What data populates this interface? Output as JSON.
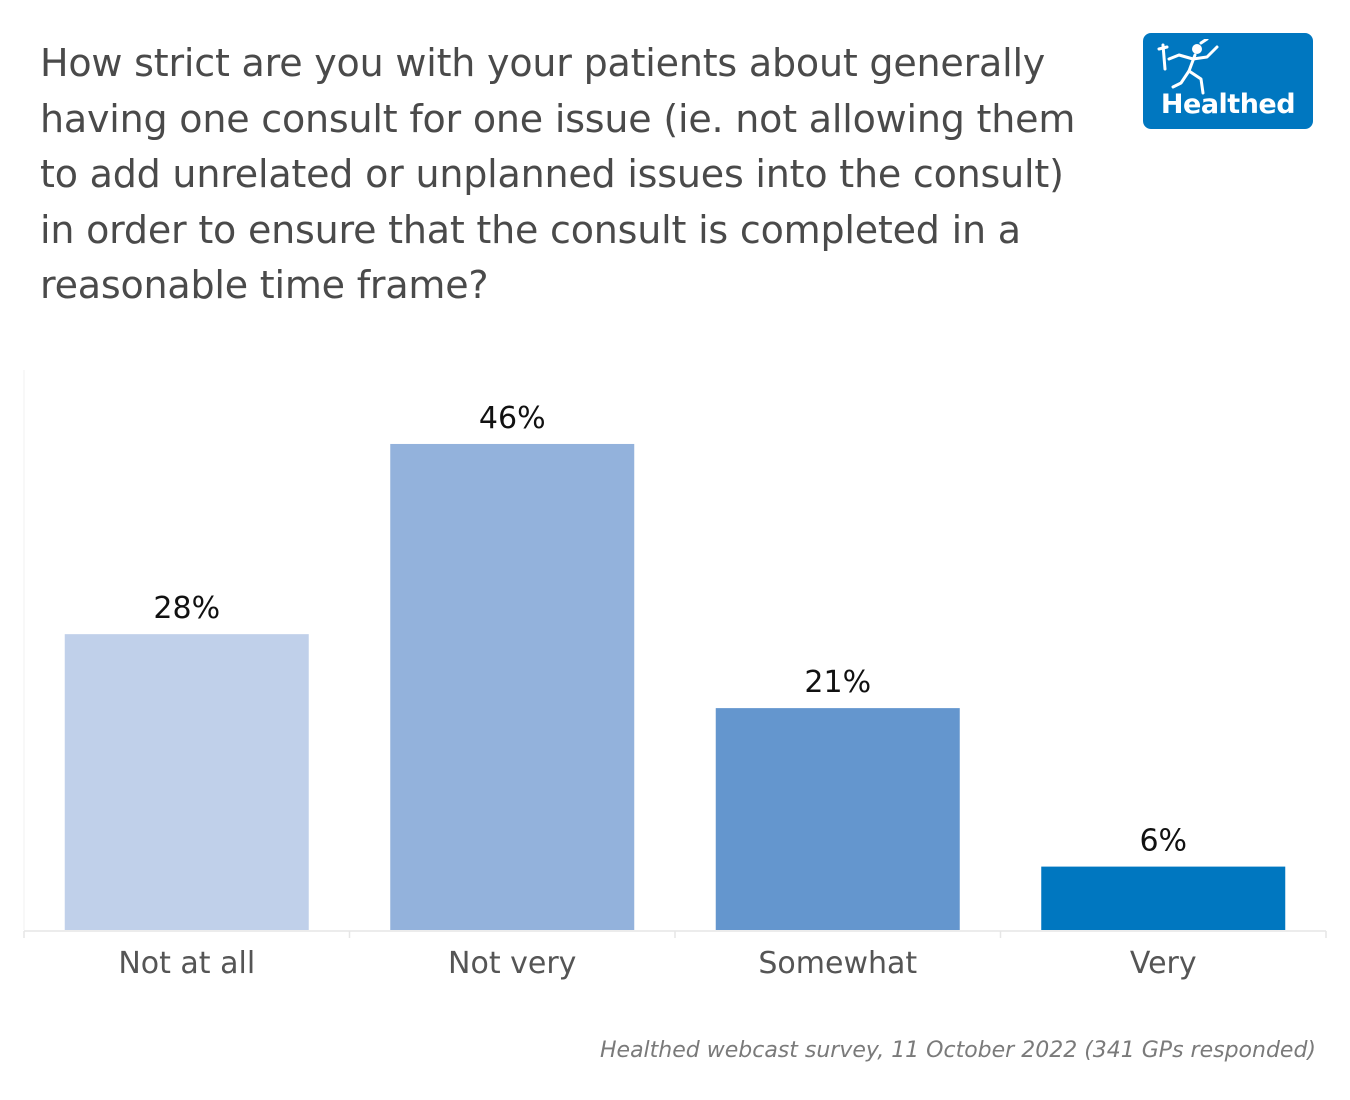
{
  "title": "How strict are you with your patients about generally having one consult for one issue (ie. not allowing them to add unrelated or unplanned issues into the consult) in order to ensure that the consult is completed in a reasonable time frame?",
  "logo": {
    "text": "Healthed",
    "background_color": "#0077c0"
  },
  "source": "Healthed webcast survey, 11 October 2022 (341 GPs responded)",
  "chart_data": {
    "type": "bar",
    "title": "How strict are you with your patients about generally having one consult for one issue (ie. not allowing them to add unrelated or unplanned issues into the consult) in order to ensure that the consult is completed in a reasonable time frame?",
    "categories": [
      "Not at all",
      "Not very",
      "Somewhat",
      "Very"
    ],
    "values": [
      28,
      46,
      21,
      6
    ],
    "value_labels": [
      "28%",
      "46%",
      "21%",
      "6%"
    ],
    "colors": [
      "#c0d0ea",
      "#93b2dc",
      "#6496ce",
      "#0077c0"
    ],
    "xlabel": "",
    "ylabel": "",
    "ylim": [
      0,
      53
    ],
    "grid": false,
    "legend": "none"
  }
}
